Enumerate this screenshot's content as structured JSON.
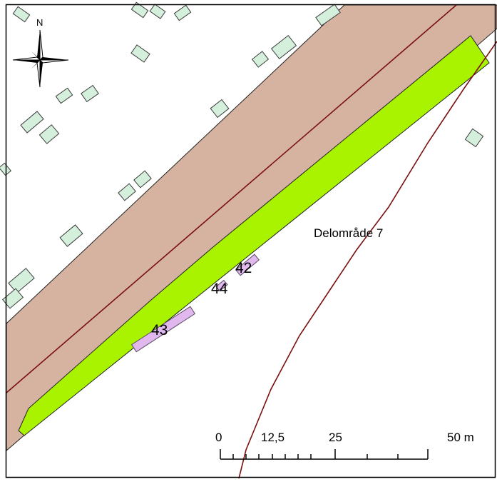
{
  "map": {
    "north_label": "N",
    "area_label": "Delområde 7",
    "site_labels": [
      {
        "id": "42",
        "text": "42"
      },
      {
        "id": "44",
        "text": "44"
      },
      {
        "id": "43",
        "text": "43"
      }
    ],
    "scalebar": {
      "labels": [
        "0",
        "12,5",
        "25",
        "50 m"
      ]
    }
  },
  "colors": {
    "background": "#ffffff",
    "road": "#d6b2a1",
    "green_strip": "#a9f200",
    "building": "#d4f0dc",
    "site": "#e0b8ee",
    "boundary": "#7a1010",
    "outline": "#000000"
  }
}
